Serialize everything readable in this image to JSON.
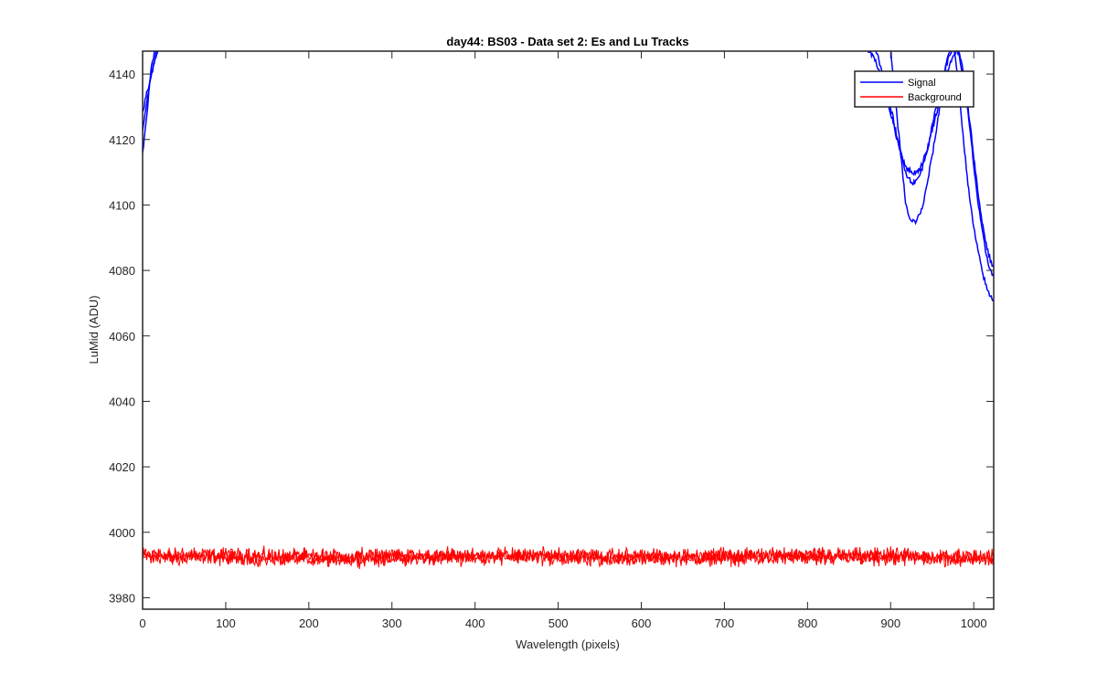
{
  "chart_data": {
    "type": "line",
    "title": "day44: BS03 - Data set 2: Es and Lu Tracks",
    "xlabel": "Wavelength (pixels)",
    "ylabel": "LuMid (ADU)",
    "xlim": [
      0,
      1024
    ],
    "ylim": [
      3976.5,
      4147
    ],
    "xticks": [
      0,
      100,
      200,
      300,
      400,
      500,
      600,
      700,
      800,
      900,
      1000
    ],
    "yticks": [
      3980,
      4000,
      4020,
      4040,
      4060,
      4080,
      4100,
      4120,
      4140
    ],
    "grid": false,
    "legend": {
      "placement": "top-right",
      "entries": [
        "Signal",
        "Background"
      ]
    },
    "colors": {
      "Signal": "#0000ff",
      "Background": "#ff0000"
    },
    "series": [
      {
        "name": "Signal",
        "color": "#0000ff",
        "traces": [
          {
            "x": [
              0,
              3,
              6,
              9,
              12,
              14,
              16,
              900,
              905,
              910,
              915,
              918,
              921,
              924,
              927,
              930,
              935,
              940,
              945,
              952,
              958,
              963,
              968,
              972,
              976,
              980,
              985,
              990,
              995,
              1000,
              1005,
              1010,
              1015,
              1020,
              1024
            ],
            "y": [
              4116,
              4122,
              4130,
              4139,
              4144,
              4146,
              4148,
              4148,
              4134,
              4121,
              4108,
              4101,
              4097,
              4095,
              4095,
              4095,
              4097,
              4101,
              4108,
              4118,
              4128,
              4138,
              4145,
              4148,
              4148,
              4140,
              4127,
              4114,
              4102,
              4093,
              4086,
              4080,
              4075,
              4072,
              4071
            ]
          },
          {
            "x": [
              0,
              3,
              6,
              9,
              12,
              15,
              18,
              880,
              885,
              890,
              895,
              900,
              905,
              910,
              915,
              920,
              925,
              930,
              935,
              940,
              945,
              950,
              955,
              960,
              965,
              970,
              975,
              980,
              985,
              990,
              995,
              1000,
              1005,
              1010,
              1015,
              1020,
              1024
            ],
            "y": [
              4123,
              4128,
              4133,
              4138,
              4142,
              4145,
              4148,
              4148,
              4145,
              4141,
              4136,
              4130,
              4124,
              4118,
              4113,
              4109,
              4107,
              4107,
              4109,
              4113,
              4118,
              4124,
              4130,
              4136,
              4141,
              4145,
              4148,
              4148,
              4142,
              4134,
              4124,
              4112,
              4101,
              4092,
              4085,
              4080,
              4078
            ]
          },
          {
            "x": [
              0,
              4,
              8,
              12,
              16,
              19,
              870,
              875,
              880,
              885,
              890,
              895,
              900,
              905,
              910,
              915,
              920,
              925,
              930,
              935,
              940,
              945,
              950,
              955,
              960,
              965,
              970,
              975,
              980,
              985,
              990,
              995,
              1000,
              1005,
              1010,
              1015,
              1020,
              1024
            ],
            "y": [
              4128,
              4133,
              4137,
              4141,
              4145,
              4148,
              4148,
              4147,
              4145,
              4142,
              4138,
              4133,
              4128,
              4123,
              4118,
              4114,
              4111,
              4110,
              4110,
              4111,
              4114,
              4118,
              4123,
              4128,
              4133,
              4138,
              4142,
              4145,
              4148,
              4144,
              4136,
              4126,
              4115,
              4104,
              4095,
              4088,
              4083,
              4081
            ]
          }
        ]
      },
      {
        "name": "Background",
        "color": "#ff0000",
        "mean": 3992.5,
        "noise_range": [
          3987,
          3997
        ]
      }
    ]
  }
}
